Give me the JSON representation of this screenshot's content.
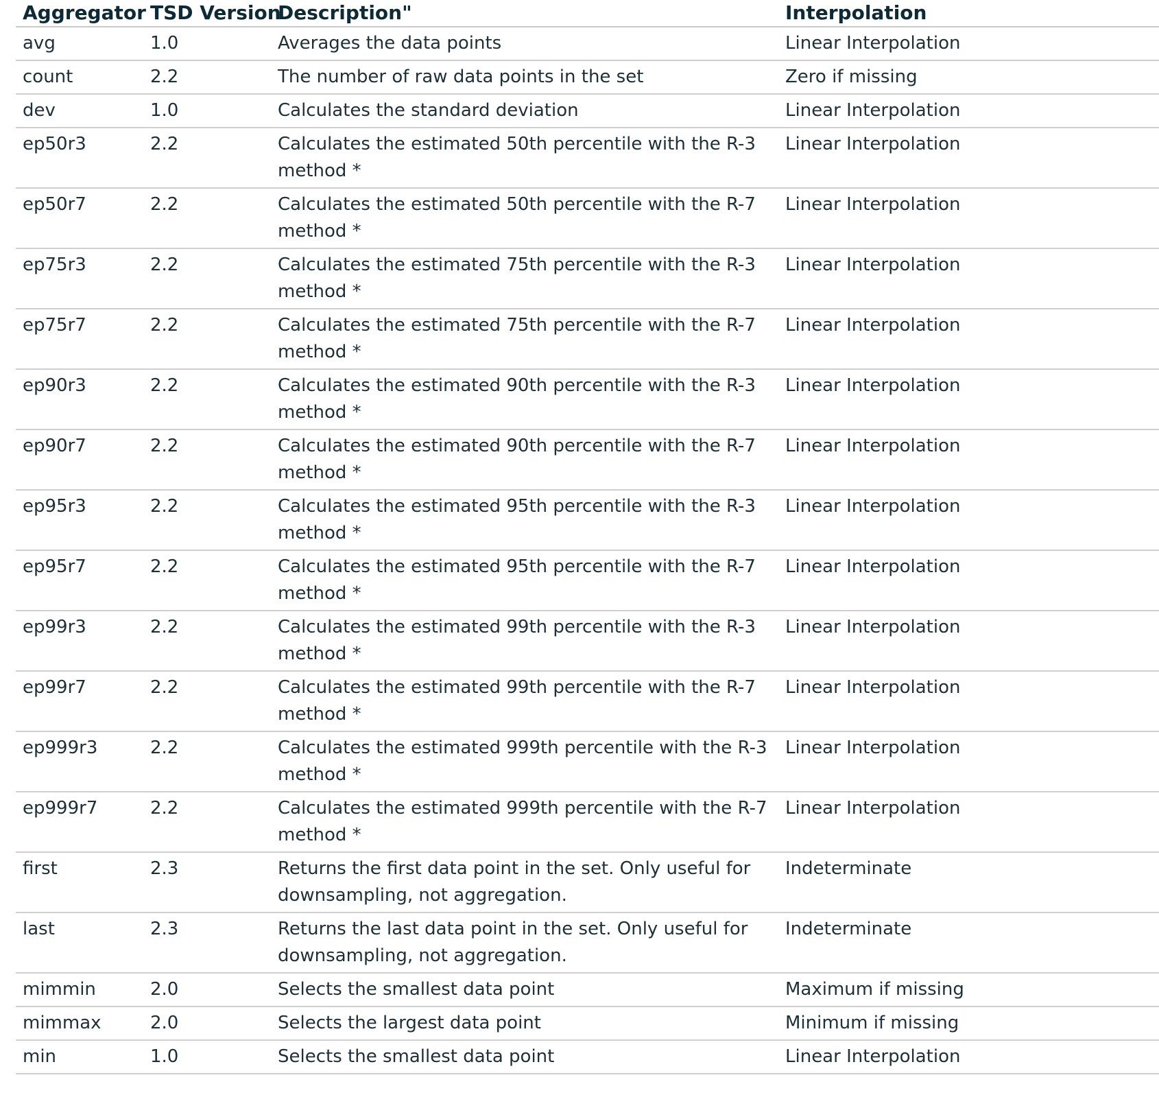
{
  "table": {
    "headers": [
      "Aggregator",
      "TSD Version",
      "Description\"",
      "Interpolation"
    ],
    "rows": [
      {
        "agg": "avg",
        "ver": "1.0",
        "desc": "Averages the data points",
        "interp": "Linear Interpolation"
      },
      {
        "agg": "count",
        "ver": "2.2",
        "desc": "The number of raw data points in the set",
        "interp": "Zero if missing"
      },
      {
        "agg": "dev",
        "ver": "1.0",
        "desc": "Calculates the standard deviation",
        "interp": "Linear Interpolation"
      },
      {
        "agg": "ep50r3",
        "ver": "2.2",
        "desc": "Calculates the estimated 50th percentile with the R-3 method *",
        "interp": "Linear Interpolation"
      },
      {
        "agg": "ep50r7",
        "ver": "2.2",
        "desc": "Calculates the estimated 50th percentile with the R-7 method *",
        "interp": "Linear Interpolation"
      },
      {
        "agg": "ep75r3",
        "ver": "2.2",
        "desc": "Calculates the estimated 75th percentile with the R-3 method *",
        "interp": "Linear Interpolation"
      },
      {
        "agg": "ep75r7",
        "ver": "2.2",
        "desc": "Calculates the estimated 75th percentile with the R-7 method *",
        "interp": "Linear Interpolation"
      },
      {
        "agg": "ep90r3",
        "ver": "2.2",
        "desc": "Calculates the estimated 90th percentile with the R-3 method *",
        "interp": "Linear Interpolation"
      },
      {
        "agg": "ep90r7",
        "ver": "2.2",
        "desc": "Calculates the estimated 90th percentile with the R-7 method *",
        "interp": "Linear Interpolation"
      },
      {
        "agg": "ep95r3",
        "ver": "2.2",
        "desc": "Calculates the estimated 95th percentile with the R-3 method *",
        "interp": "Linear Interpolation"
      },
      {
        "agg": "ep95r7",
        "ver": "2.2",
        "desc": "Calculates the estimated 95th percentile with the R-7 method *",
        "interp": "Linear Interpolation"
      },
      {
        "agg": "ep99r3",
        "ver": "2.2",
        "desc": "Calculates the estimated 99th percentile with the R-3 method *",
        "interp": "Linear Interpolation"
      },
      {
        "agg": "ep99r7",
        "ver": "2.2",
        "desc": "Calculates the estimated 99th percentile with the R-7 method *",
        "interp": "Linear Interpolation"
      },
      {
        "agg": "ep999r3",
        "ver": "2.2",
        "desc": "Calculates the estimated 999th percentile with the R-3 method *",
        "interp": "Linear Interpolation"
      },
      {
        "agg": "ep999r7",
        "ver": "2.2",
        "desc": "Calculates the estimated 999th percentile with the R-7 method *",
        "interp": "Linear Interpolation"
      },
      {
        "agg": "first",
        "ver": "2.3",
        "desc": "Returns the first data point in the set. Only useful for downsampling, not aggregation.",
        "interp": "Indeterminate"
      },
      {
        "agg": "last",
        "ver": "2.3",
        "desc": "Returns the last data point in the set. Only useful for downsampling, not aggregation.",
        "interp": "Indeterminate"
      },
      {
        "agg": "mimmin",
        "ver": "2.0",
        "desc": "Selects the smallest data point",
        "interp": "Maximum if missing"
      },
      {
        "agg": "mimmax",
        "ver": "2.0",
        "desc": "Selects the largest data point",
        "interp": "Minimum if missing"
      },
      {
        "agg": "min",
        "ver": "1.0",
        "desc": "Selects the smallest data point",
        "interp": "Linear Interpolation"
      }
    ]
  }
}
